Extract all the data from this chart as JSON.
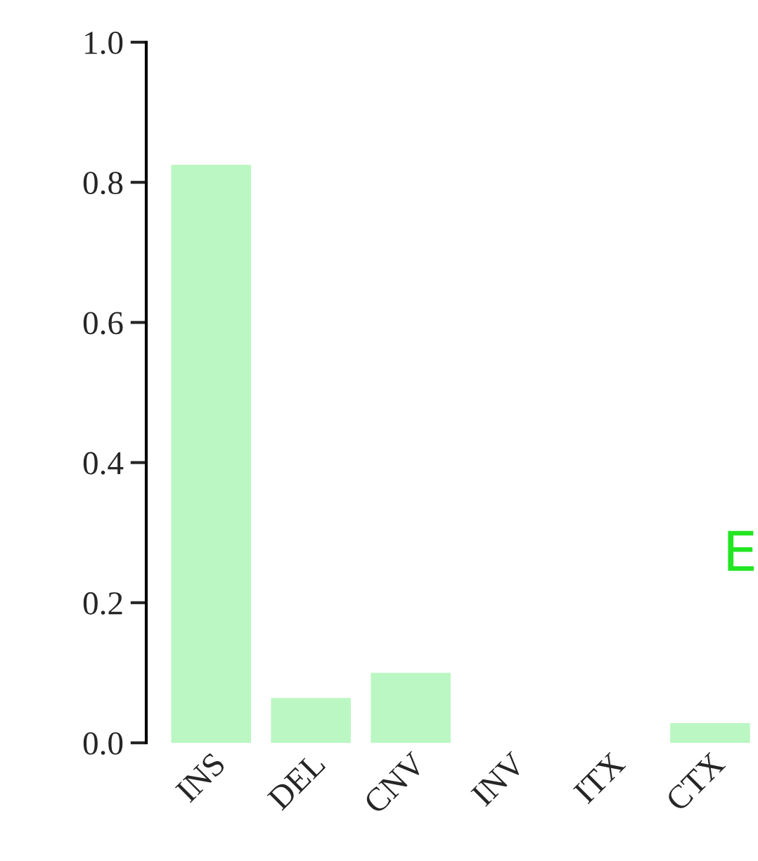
{
  "chart_data": {
    "type": "bar",
    "categories": [
      "INS",
      "DEL",
      "CNV",
      "INV",
      "ITX",
      "CTX"
    ],
    "values": [
      0.825,
      0.064,
      0.1,
      0,
      0,
      0.028
    ],
    "color": "#bbf7c3",
    "ylim": [
      0,
      1.0
    ],
    "yticks": [
      {
        "value": 0,
        "label": "0.0"
      },
      {
        "value": 0.2,
        "label": "0.2"
      },
      {
        "value": 0.4,
        "label": "0.4"
      },
      {
        "value": 0.6,
        "label": "0.6"
      },
      {
        "value": 0.8,
        "label": "0.8"
      },
      {
        "value": 1.0,
        "label": "1.0"
      }
    ],
    "grid": false,
    "annotations": [
      "E"
    ]
  }
}
